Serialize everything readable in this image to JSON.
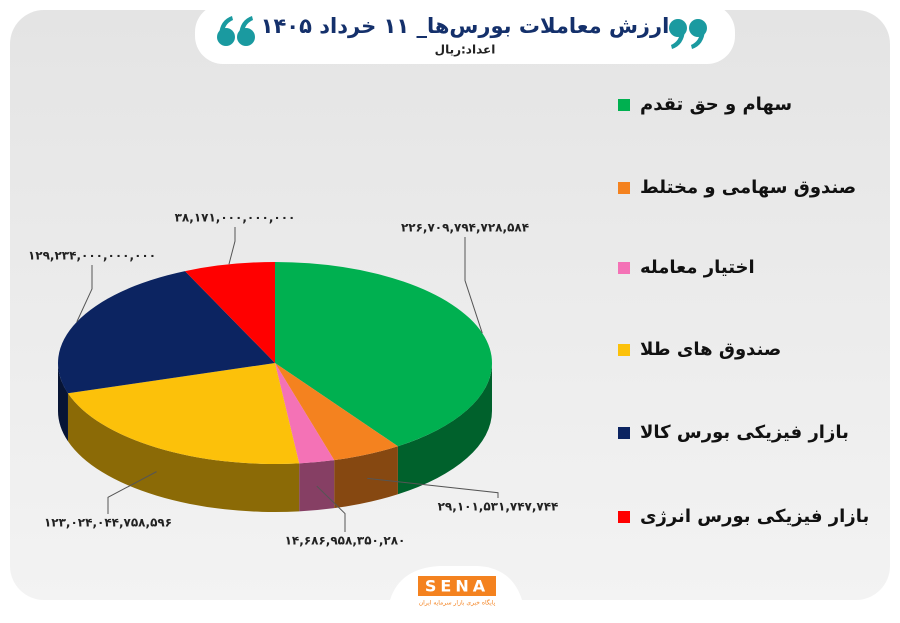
{
  "chart_data": {
    "type": "pie",
    "title": "ارزش معاملات بورس‌ها_ ۱۱ خرداد ۱۴۰۵",
    "subtitle": "اعداد:ریال",
    "categories": [
      "سهام و حق تقدم",
      "صندوق سهامی و مختلط",
      "اختیار معامله",
      "صندوق های طلا",
      "بازار فیزیکی بورس کالا",
      "بازار فیزیکی بورس انرژی"
    ],
    "values": [
      226709794728584,
      29101531747744,
      14686958350280,
      123024044758596,
      129234000000000,
      38171000000000
    ],
    "value_labels": [
      "۲۲۶,۷۰۹,۷۹۴,۷۲۸,۵۸۴",
      "۲۹,۱۰۱,۵۳۱,۷۴۷,۷۴۴",
      "۱۴,۶۸۶,۹۵۸,۳۵۰,۲۸۰",
      "۱۲۳,۰۲۴,۰۴۴,۷۵۸,۵۹۶",
      "۱۲۹,۲۳۴,۰۰۰,۰۰۰,۰۰۰",
      "۳۸,۱۷۱,۰۰۰,۰۰۰,۰۰۰"
    ],
    "colors": [
      "#00b050",
      "#f4821f",
      "#f472b6",
      "#fcc10a",
      "#0c2461",
      "#ff0000"
    ],
    "legend": "right"
  },
  "footer": {
    "logo": "SENA",
    "tagline": "پایگاه خبری بازار سرمایه ایران"
  }
}
